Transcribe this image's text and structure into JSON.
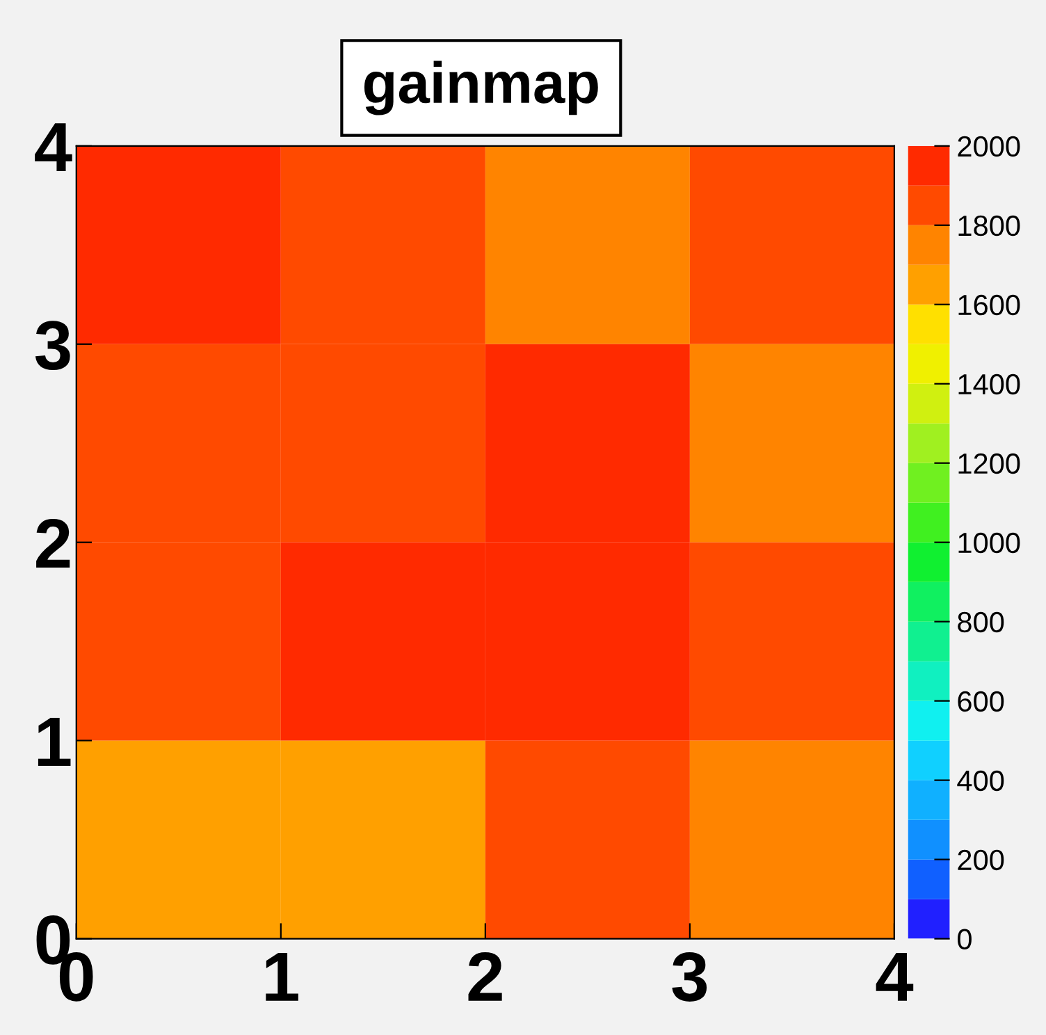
{
  "chart_data": {
    "type": "heatmap",
    "title": "gainmap",
    "cells": [
      [
        1950,
        1850,
        1750,
        1850
      ],
      [
        1850,
        1850,
        1950,
        1750
      ],
      [
        1850,
        1950,
        1950,
        1850
      ],
      [
        1650,
        1650,
        1850,
        1750
      ]
    ],
    "xlim": [
      0,
      4
    ],
    "xticks": [
      0,
      1,
      2,
      3,
      4
    ],
    "ylim": [
      0,
      4
    ],
    "yticks": [
      0,
      1,
      2,
      3,
      4
    ],
    "clim": [
      0,
      2000
    ],
    "cticks": [
      0,
      200,
      400,
      600,
      800,
      1000,
      1200,
      1400,
      1600,
      1800,
      2000
    ],
    "grid": false
  }
}
